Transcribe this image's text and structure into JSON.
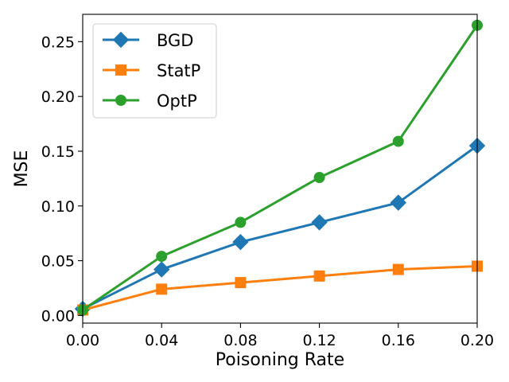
{
  "chart_data": {
    "type": "line",
    "title": "",
    "xlabel": "Poisoning Rate",
    "ylabel": "MSE",
    "xlim": [
      0.0,
      0.2
    ],
    "ylim": [
      -0.007,
      0.275
    ],
    "xticks": [
      0.0,
      0.04,
      0.08,
      0.12,
      0.16,
      0.2
    ],
    "xtick_labels": [
      "0.00",
      "0.04",
      "0.08",
      "0.12",
      "0.16",
      "0.20"
    ],
    "yticks": [
      0.0,
      0.05,
      0.1,
      0.15,
      0.2,
      0.25
    ],
    "ytick_labels": [
      "0.00",
      "0.05",
      "0.10",
      "0.15",
      "0.20",
      "0.25"
    ],
    "grid": false,
    "legend_position": "upper-left",
    "x": [
      0.0,
      0.04,
      0.08,
      0.12,
      0.16,
      0.2
    ],
    "series": [
      {
        "name": "BGD",
        "color": "#1f77b4",
        "marker": "diamond",
        "values": [
          0.006,
          0.042,
          0.067,
          0.085,
          0.103,
          0.155
        ]
      },
      {
        "name": "StatP",
        "color": "#ff7f0e",
        "marker": "square",
        "values": [
          0.005,
          0.024,
          0.03,
          0.036,
          0.042,
          0.045
        ]
      },
      {
        "name": "OptP",
        "color": "#2ca02c",
        "marker": "circle",
        "values": [
          0.005,
          0.054,
          0.085,
          0.126,
          0.159,
          0.265
        ]
      }
    ]
  }
}
